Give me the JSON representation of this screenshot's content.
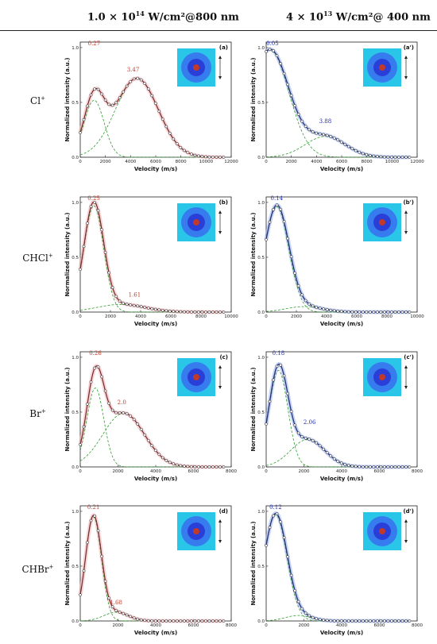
{
  "headers": {
    "left": {
      "pre": "1.0 × 10",
      "sup": "14",
      "post": " W/cm²@800 nm"
    },
    "right": {
      "pre": "4 × 10",
      "sup": "13",
      "post": " W/cm²@ 400 nm"
    }
  },
  "rows": [
    {
      "name": "Cl",
      "charge": "+"
    },
    {
      "name": "CHCl",
      "charge": "+"
    },
    {
      "name": "Br",
      "charge": "+"
    },
    {
      "name": "CHBr",
      "charge": "+"
    }
  ],
  "chart_data": [
    {
      "type": "line",
      "panel": "(a)",
      "ion": "Cl+",
      "laser": "800 nm",
      "xlabel": "Velocity (m/s)",
      "ylabel": "Normalized intensity (a.u.)",
      "xlim": [
        0,
        12000
      ],
      "xticks": [
        0,
        2000,
        4000,
        6000,
        8000,
        10000,
        12000
      ],
      "ylim": [
        0,
        1.05
      ],
      "yticks": [
        0.0,
        0.5,
        1.0
      ],
      "fit_color": "#c0392b",
      "annotations": [
        {
          "text": "0.27",
          "x": 1100,
          "y": 1.0
        },
        {
          "text": "3.47",
          "x": 4200,
          "y": 0.76
        }
      ],
      "components": [
        {
          "center": 1100,
          "width": 800,
          "amp": 0.52
        },
        {
          "center": 4500,
          "width": 1700,
          "amp": 0.72
        }
      ]
    },
    {
      "type": "line",
      "panel": "(a')",
      "ion": "Cl+",
      "laser": "400 nm",
      "xlabel": "Velocity (m/s)",
      "ylabel": "Normalized intensity (a.u.)",
      "xlim": [
        0,
        12000
      ],
      "xticks": [
        0,
        2000,
        4000,
        6000,
        8000,
        10000,
        12000
      ],
      "ylim": [
        0,
        1.05
      ],
      "yticks": [
        0.0,
        0.5,
        1.0
      ],
      "fit_color": "#1f2fb4",
      "annotations": [
        {
          "text": "0.05",
          "x": 500,
          "y": 1.0
        },
        {
          "text": "3.88",
          "x": 4700,
          "y": 0.29
        }
      ],
      "components": [
        {
          "center": 300,
          "width": 1500,
          "amp": 0.98
        },
        {
          "center": 4700,
          "width": 1600,
          "amp": 0.19
        }
      ]
    },
    {
      "type": "line",
      "panel": "(b)",
      "ion": "CHCl+",
      "laser": "800 nm",
      "xlabel": "Velocity (m/s)",
      "ylabel": "Normalized intensity (a.u.)",
      "xlim": [
        0,
        10000
      ],
      "xticks": [
        0,
        2000,
        4000,
        6000,
        8000,
        10000
      ],
      "ylim": [
        0,
        1.05
      ],
      "yticks": [
        0.0,
        0.5,
        1.0
      ],
      "fit_color": "#c0392b",
      "annotations": [
        {
          "text": "0.25",
          "x": 900,
          "y": 1.0
        },
        {
          "text": "1.61",
          "x": 3600,
          "y": 0.12
        }
      ],
      "components": [
        {
          "center": 900,
          "width": 650,
          "amp": 0.97
        },
        {
          "center": 2700,
          "width": 1600,
          "amp": 0.07
        }
      ]
    },
    {
      "type": "line",
      "panel": "(b')",
      "ion": "CHCl+",
      "laser": "400 nm",
      "xlabel": "Velocity (m/s)",
      "ylabel": "Normalized intensity (a.u.)",
      "xlim": [
        0,
        10000
      ],
      "xticks": [
        0,
        2000,
        4000,
        6000,
        8000,
        10000
      ],
      "ylim": [
        0,
        1.05
      ],
      "yticks": [
        0.0,
        0.5,
        1.0
      ],
      "fit_color": "#1f2fb4",
      "annotations": [
        {
          "text": "0.14",
          "x": 700,
          "y": 1.0
        }
      ],
      "components": [
        {
          "center": 700,
          "width": 800,
          "amp": 0.96
        },
        {
          "center": 2500,
          "width": 1200,
          "amp": 0.05
        }
      ]
    },
    {
      "type": "line",
      "panel": "(c)",
      "ion": "Br+",
      "laser": "800 nm",
      "xlabel": "Velocity (m/s)",
      "ylabel": "Normalized intensity (a.u.)",
      "xlim": [
        0,
        8000
      ],
      "xticks": [
        0,
        2000,
        4000,
        6000,
        8000
      ],
      "ylim": [
        0,
        1.05
      ],
      "yticks": [
        0.0,
        0.5,
        1.0
      ],
      "fit_color": "#c0392b",
      "annotations": [
        {
          "text": "0.26",
          "x": 800,
          "y": 1.0
        },
        {
          "text": "2.0",
          "x": 2200,
          "y": 0.55
        }
      ],
      "components": [
        {
          "center": 800,
          "width": 450,
          "amp": 0.72
        },
        {
          "center": 2300,
          "width": 1100,
          "amp": 0.49
        }
      ]
    },
    {
      "type": "line",
      "panel": "(c')",
      "ion": "Br+",
      "laser": "400 nm",
      "xlabel": "Velocity (m/s)",
      "ylabel": "Normalized intensity (a.u.)",
      "xlim": [
        0,
        8000
      ],
      "xticks": [
        0,
        2000,
        4000,
        6000,
        8000
      ],
      "ylim": [
        0,
        1.05
      ],
      "yticks": [
        0.0,
        0.5,
        1.0
      ],
      "fit_color": "#1f2fb4",
      "annotations": [
        {
          "text": "0.18",
          "x": 650,
          "y": 1.0
        },
        {
          "text": "2.06",
          "x": 2300,
          "y": 0.37
        }
      ],
      "components": [
        {
          "center": 650,
          "width": 500,
          "amp": 0.88
        },
        {
          "center": 2200,
          "width": 900,
          "amp": 0.25
        }
      ]
    },
    {
      "type": "line",
      "panel": "(d)",
      "ion": "CHBr+",
      "laser": "800 nm",
      "xlabel": "Velocity (m/s)",
      "ylabel": "Normalized intensity (a.u.)",
      "xlim": [
        0,
        8000
      ],
      "xticks": [
        0,
        2000,
        4000,
        6000,
        8000
      ],
      "ylim": [
        0,
        1.05
      ],
      "yticks": [
        0.0,
        0.5,
        1.0
      ],
      "fit_color": "#c0392b",
      "annotations": [
        {
          "text": "0.21",
          "x": 700,
          "y": 1.0
        },
        {
          "text": "1.68",
          "x": 1900,
          "y": 0.13
        }
      ],
      "components": [
        {
          "center": 700,
          "width": 420,
          "amp": 0.95
        },
        {
          "center": 1900,
          "width": 650,
          "amp": 0.08
        }
      ]
    },
    {
      "type": "line",
      "panel": "(d')",
      "ion": "CHBr+",
      "laser": "400 nm",
      "xlabel": "Velocity (m/s)",
      "ylabel": "Normalized intensity (a.u.)",
      "xlim": [
        0,
        8000
      ],
      "xticks": [
        0,
        2000,
        4000,
        6000,
        8000
      ],
      "ylim": [
        0,
        1.05
      ],
      "yticks": [
        0.0,
        0.5,
        1.0
      ],
      "fit_color": "#1f2fb4",
      "annotations": [
        {
          "text": "0.12",
          "x": 500,
          "y": 1.0
        }
      ],
      "components": [
        {
          "center": 500,
          "width": 600,
          "amp": 0.97
        },
        {
          "center": 1700,
          "width": 700,
          "amp": 0.05
        }
      ]
    }
  ]
}
